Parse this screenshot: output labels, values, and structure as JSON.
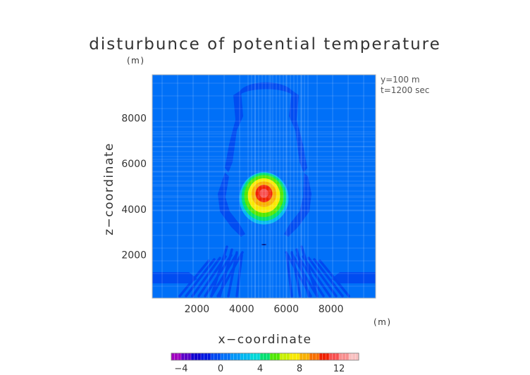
{
  "chart_data": {
    "type": "heatmap",
    "title": "disturbunce of potential temperature",
    "title_unit": "(m)",
    "xlabel": "x−coordinate",
    "ylabel": "z−coordinate",
    "x_unit": "(m)",
    "xlim": [
      0,
      10000
    ],
    "ylim": [
      100,
      9900
    ],
    "x_ticks": [
      "2000",
      "4000",
      "6000",
      "8000"
    ],
    "x_tick_values": [
      2000,
      4000,
      6000,
      8000
    ],
    "y_ticks": [
      "2000",
      "4000",
      "6000",
      "8000"
    ],
    "y_tick_values": [
      2000,
      4000,
      6000,
      8000
    ],
    "annotations": [
      "y=100  m",
      "t=1200 sec"
    ],
    "background_value": 0,
    "bubble": {
      "center_x": 5000,
      "center_z": 4600,
      "rings": [
        {
          "rx": 1100,
          "rz": 1150,
          "value": 2.5,
          "dz": -120
        },
        {
          "rx": 1000,
          "rz": 1050,
          "value": 4,
          "dz": -60
        },
        {
          "rx": 880,
          "rz": 920,
          "value": 5.5,
          "dz": -20
        },
        {
          "rx": 720,
          "rz": 760,
          "value": 7,
          "dz": 0
        },
        {
          "rx": 560,
          "rz": 560,
          "value": 8.5,
          "dz": 60
        },
        {
          "rx": 380,
          "rz": 380,
          "value": 10,
          "dz": 90
        },
        {
          "rx": 200,
          "rz": 200,
          "value": 11.5,
          "dz": 100
        }
      ]
    },
    "colorbar": {
      "min": -5,
      "max": 14,
      "tick_labels": [
        "−4",
        "0",
        "4",
        "8",
        "12"
      ],
      "tick_values": [
        -4,
        0,
        4,
        8,
        12
      ],
      "levels": [
        {
          "value": -5,
          "color": "#a000c0"
        },
        {
          "value": -4,
          "color": "#5a00c8"
        },
        {
          "value": -3,
          "color": "#1000d0"
        },
        {
          "value": -2,
          "color": "#0018e0"
        },
        {
          "value": -1,
          "color": "#0048f0"
        },
        {
          "value": 0,
          "color": "#0070f8"
        },
        {
          "value": 1,
          "color": "#0096f8"
        },
        {
          "value": 2,
          "color": "#00b8f0"
        },
        {
          "value": 3,
          "color": "#00d8d8"
        },
        {
          "value": 4,
          "color": "#00e070"
        },
        {
          "value": 5,
          "color": "#50e800"
        },
        {
          "value": 6,
          "color": "#c8f000"
        },
        {
          "value": 7,
          "color": "#f8e800"
        },
        {
          "value": 8,
          "color": "#f8b000"
        },
        {
          "value": 9,
          "color": "#f87000"
        },
        {
          "value": 10,
          "color": "#f02000"
        },
        {
          "value": 11,
          "color": "#f85050"
        },
        {
          "value": 12,
          "color": "#f89090"
        },
        {
          "value": 13,
          "color": "#f8c0c0"
        }
      ]
    }
  }
}
